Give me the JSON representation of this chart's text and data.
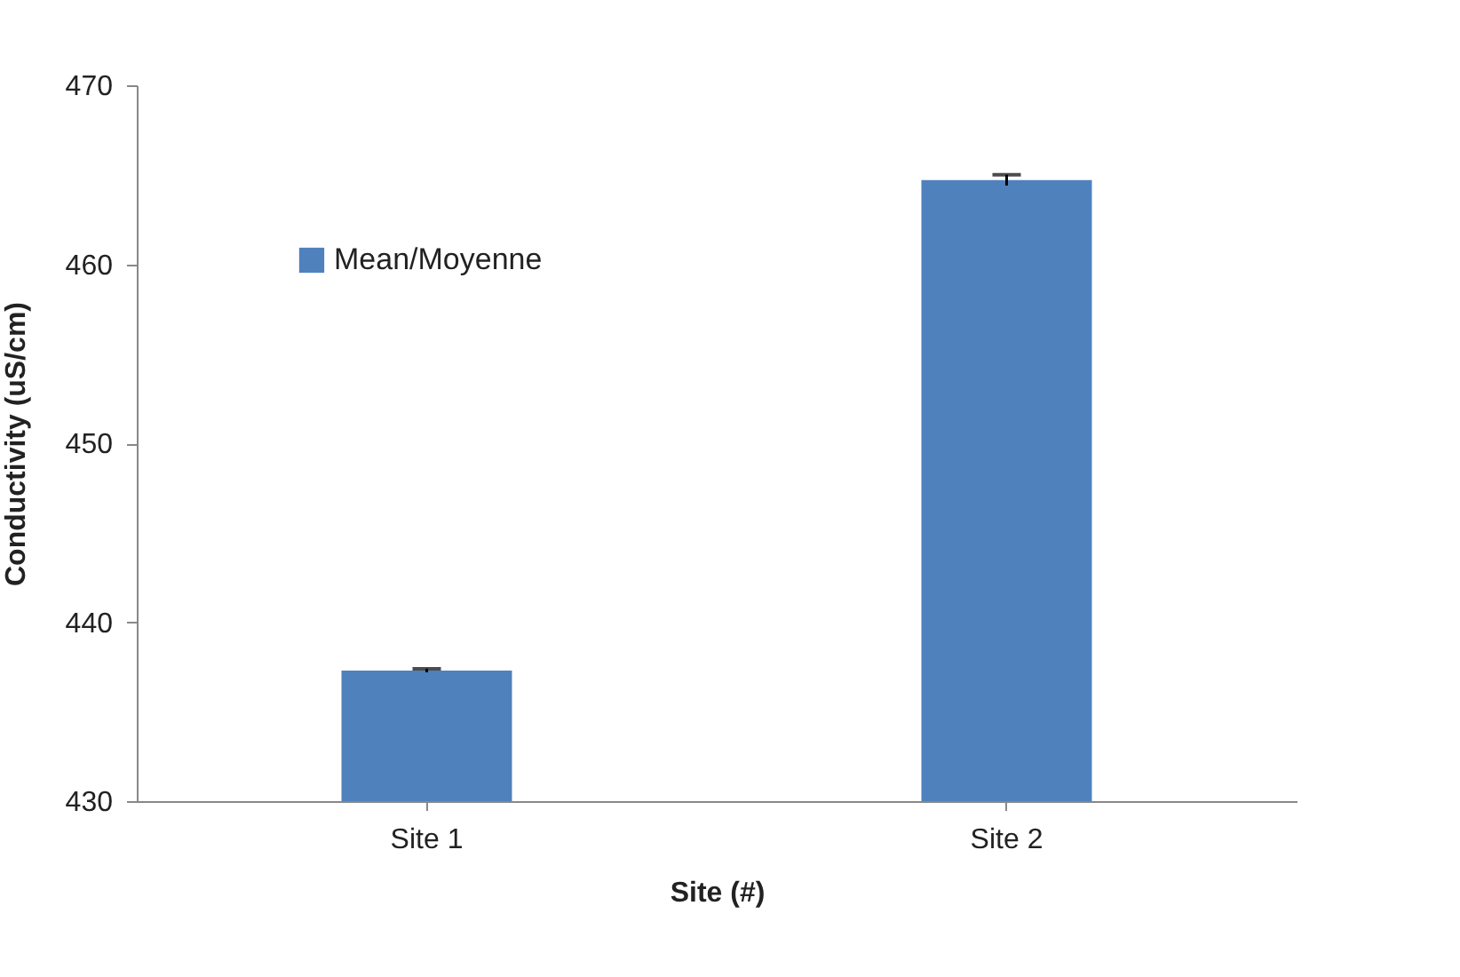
{
  "chart_data": {
    "type": "bar",
    "xlabel": "Site (#)",
    "ylabel": "Conductivity (uS/cm)",
    "categories": [
      "Site 1",
      "Site 2"
    ],
    "series": [
      {
        "name": "Mean/Moyenne",
        "color": "#4f81bd",
        "values": [
          437.3,
          464.7
        ],
        "errors": [
          0.1,
          0.3
        ]
      }
    ],
    "ylim": [
      430,
      470
    ],
    "yticks": [
      430,
      440,
      450,
      460,
      470
    ],
    "grid": false,
    "legend": "top left"
  }
}
